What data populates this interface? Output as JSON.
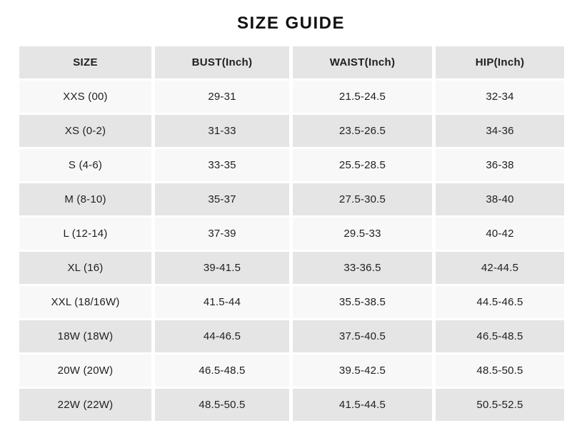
{
  "chart_data": {
    "type": "table",
    "title": "SIZE GUIDE",
    "columns": [
      "SIZE",
      "BUST(Inch)",
      "WAIST(Inch)",
      "HIP(Inch)"
    ],
    "rows": [
      [
        "XXS (00)",
        "29-31",
        "21.5-24.5",
        "32-34"
      ],
      [
        "XS (0-2)",
        "31-33",
        "23.5-26.5",
        "34-36"
      ],
      [
        "S (4-6)",
        "33-35",
        "25.5-28.5",
        "36-38"
      ],
      [
        "M (8-10)",
        "35-37",
        "27.5-30.5",
        "38-40"
      ],
      [
        "L (12-14)",
        "37-39",
        "29.5-33",
        "40-42"
      ],
      [
        "XL (16)",
        "39-41.5",
        "33-36.5",
        "42-44.5"
      ],
      [
        "XXL (18/16W)",
        "41.5-44",
        "35.5-38.5",
        "44.5-46.5"
      ],
      [
        "18W (18W)",
        "44-46.5",
        "37.5-40.5",
        "46.5-48.5"
      ],
      [
        "20W (20W)",
        "46.5-48.5",
        "39.5-42.5",
        "48.5-50.5"
      ],
      [
        "22W (22W)",
        "48.5-50.5",
        "41.5-44.5",
        "50.5-52.5"
      ]
    ]
  },
  "colors": {
    "page_bg": "#ffffff",
    "cell_gray": "#e5e5e5",
    "cell_light": "#f8f8f8",
    "text": "#1f1f1f",
    "title_text": "#111111"
  }
}
